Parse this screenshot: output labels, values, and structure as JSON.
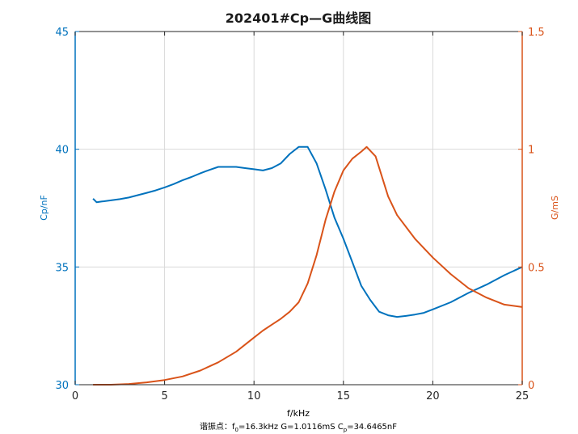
{
  "chart_data": {
    "type": "line",
    "title": "202401#Cp—G曲线图",
    "xlabel": "f/kHz",
    "ylabel_left": "Cp/nF",
    "ylabel_right": "G/mS",
    "xlim": [
      0,
      25
    ],
    "ylim_left": [
      30,
      45
    ],
    "ylim_right": [
      0,
      1.5
    ],
    "x_ticks": [
      0,
      5,
      10,
      15,
      20,
      25
    ],
    "y_left_ticks": [
      30,
      35,
      40,
      45
    ],
    "y_right_ticks": [
      0,
      0.5,
      1,
      1.5
    ],
    "grid": true,
    "colors": {
      "left": "#0072BD",
      "right": "#D95319"
    },
    "caption": {
      "prefix": "谐振点：f",
      "f_sub": "0",
      "f_value": "=16.3kHz  G=1.0116mS  C",
      "c_sub": "p",
      "c_value": "=34.6465nF"
    },
    "series": [
      {
        "axis": "left",
        "x": [
          1.0,
          1.2,
          1.5,
          2.0,
          2.5,
          3.0,
          3.5,
          4.0,
          4.5,
          5.0,
          5.5,
          6.0,
          6.5,
          7.0,
          7.5,
          8.0,
          8.5,
          9.0,
          9.5,
          10.0,
          10.5,
          11.0,
          11.5,
          12.0,
          12.5,
          13.0,
          13.5,
          14.0,
          14.5,
          15.0,
          15.5,
          16.0,
          16.5,
          17.0,
          17.5,
          18.0,
          18.5,
          19.0,
          19.5,
          20.0,
          21.0,
          22.0,
          23.0,
          24.0,
          25.0
        ],
        "values": [
          37.9,
          37.75,
          37.78,
          37.83,
          37.88,
          37.95,
          38.05,
          38.15,
          38.25,
          38.38,
          38.52,
          38.68,
          38.82,
          38.98,
          39.12,
          39.25,
          39.25,
          39.25,
          39.2,
          39.15,
          39.1,
          39.2,
          39.4,
          39.8,
          40.1,
          40.1,
          39.4,
          38.3,
          37.1,
          36.2,
          35.2,
          34.2,
          33.6,
          33.1,
          32.95,
          32.88,
          32.92,
          32.98,
          33.05,
          33.2,
          33.5,
          33.9,
          34.25,
          34.65,
          35.0
        ]
      },
      {
        "axis": "right",
        "x": [
          1.0,
          2.0,
          3.0,
          4.0,
          5.0,
          6.0,
          7.0,
          8.0,
          9.0,
          10.0,
          10.5,
          11.0,
          11.5,
          12.0,
          12.5,
          13.0,
          13.5,
          14.0,
          14.5,
          15.0,
          15.5,
          16.0,
          16.3,
          16.8,
          17.5,
          18.0,
          19.0,
          20.0,
          21.0,
          22.0,
          23.0,
          24.0,
          25.0
        ],
        "values": [
          0.0,
          0.0,
          0.003,
          0.01,
          0.02,
          0.035,
          0.06,
          0.095,
          0.14,
          0.2,
          0.23,
          0.255,
          0.28,
          0.31,
          0.35,
          0.43,
          0.55,
          0.7,
          0.82,
          0.91,
          0.96,
          0.99,
          1.01,
          0.97,
          0.8,
          0.72,
          0.62,
          0.54,
          0.47,
          0.41,
          0.37,
          0.34,
          0.33
        ]
      }
    ]
  }
}
